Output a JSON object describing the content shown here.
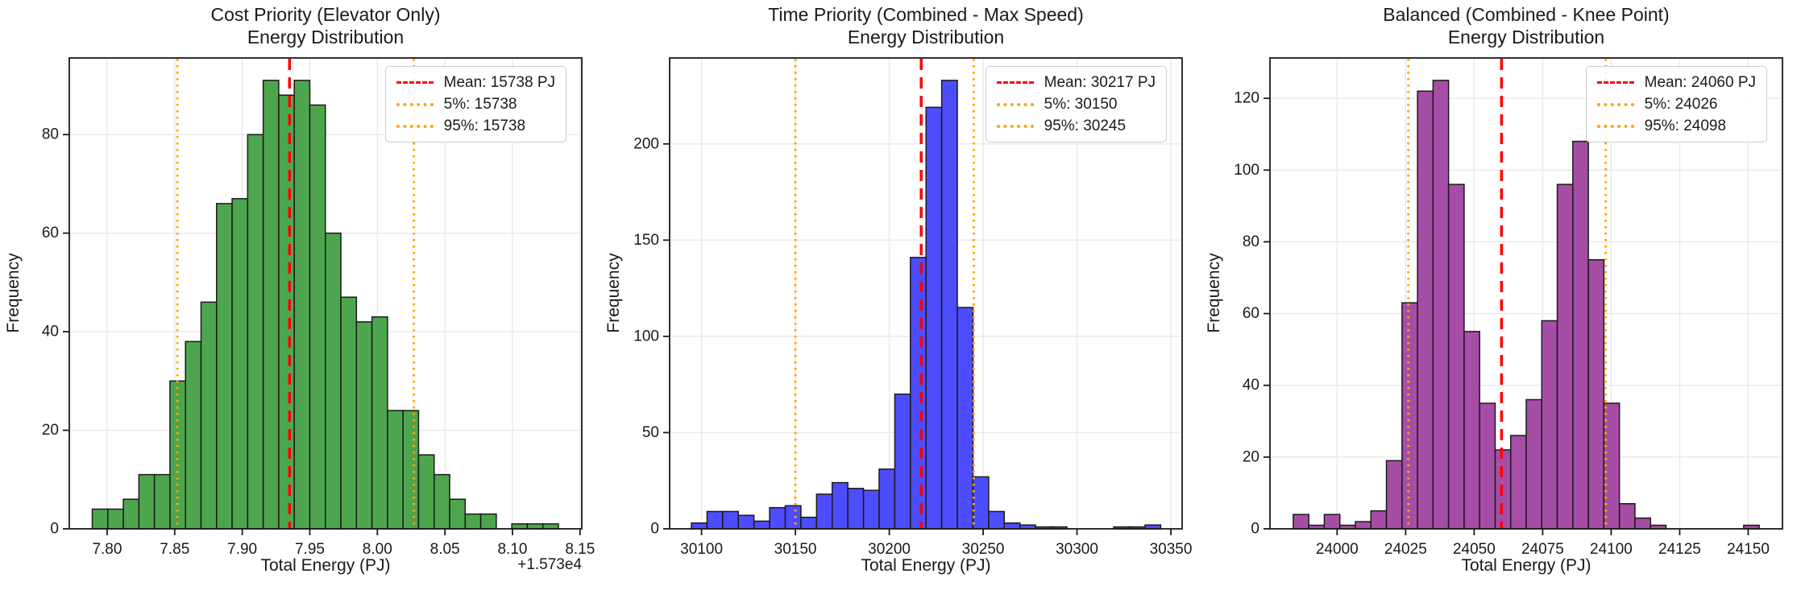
{
  "figure": {
    "background": "#FFFFFF"
  },
  "colors": {
    "mean_line": "#FF0000",
    "percentile_line": "#FFA500",
    "bar_edge": "#1A1A1A",
    "grid": "#E8E8E8",
    "axis": "#1A1A1A",
    "legend_border": "#CCCCCC"
  },
  "chart_data": [
    {
      "type": "bar",
      "subtype": "histogram",
      "title": "Cost Priority (Elevator Only)\nEnergy Distribution",
      "xlabel": "Total Energy (PJ)",
      "ylabel": "Frequency",
      "x_offset_label": "+1.573e4",
      "bar_color": "#4DA64D",
      "bin_start": 7.789,
      "bin_width": 0.0115,
      "frequencies": [
        4,
        4,
        6,
        11,
        11,
        30,
        38,
        46,
        66,
        67,
        80,
        91,
        88,
        91,
        86,
        60,
        47,
        42,
        43,
        24,
        24,
        15,
        11,
        6,
        3,
        3,
        0,
        1,
        1,
        1
      ],
      "mean": 7.935,
      "p5": 7.852,
      "p95": 8.027,
      "xlim": [
        7.772,
        8.1513
      ],
      "ylim": [
        0,
        95.55
      ],
      "x_ticks": {
        "values": [
          7.8,
          7.85,
          7.9,
          7.95,
          8.0,
          8.05,
          8.1,
          8.15
        ],
        "labels": [
          "7.80",
          "7.85",
          "7.90",
          "7.95",
          "8.00",
          "8.05",
          "8.10",
          "8.15"
        ]
      },
      "y_ticks": {
        "values": [
          0,
          20,
          40,
          60,
          80
        ],
        "labels": [
          "0",
          "20",
          "40",
          "60",
          "80"
        ]
      },
      "legend": [
        {
          "role": "mean",
          "label": "Mean: 15738 PJ"
        },
        {
          "role": "p5",
          "label": "5%: 15738"
        },
        {
          "role": "p95",
          "label": "95%: 15738"
        }
      ]
    },
    {
      "type": "bar",
      "subtype": "histogram",
      "title": "Time Priority (Combined - Max Speed)\nEnergy Distribution",
      "xlabel": "Total Energy (PJ)",
      "ylabel": "Frequency",
      "bar_color": "#4D4DFF",
      "bin_start": 30094.6,
      "bin_width": 8.333,
      "frequencies": [
        3,
        9,
        9,
        7,
        4,
        11,
        12,
        6,
        18,
        24,
        21,
        20,
        31,
        70,
        141,
        219,
        233,
        115,
        27,
        9,
        3,
        2,
        1,
        1,
        0,
        0,
        0,
        1,
        1,
        2
      ],
      "mean": 30217,
      "p5": 30150,
      "p95": 30245,
      "xlim": [
        30083,
        30356
      ],
      "ylim": [
        0,
        244.65
      ],
      "x_ticks": {
        "values": [
          30100,
          30150,
          30200,
          30250,
          30300,
          30350
        ],
        "labels": [
          "30100",
          "30150",
          "30200",
          "30250",
          "30300",
          "30350"
        ]
      },
      "y_ticks": {
        "values": [
          0,
          50,
          100,
          150,
          200
        ],
        "labels": [
          "0",
          "50",
          "100",
          "150",
          "200"
        ]
      },
      "legend": [
        {
          "role": "mean",
          "label": "Mean: 30217 PJ"
        },
        {
          "role": "p5",
          "label": "5%: 30150"
        },
        {
          "role": "p95",
          "label": "95%: 30245"
        }
      ]
    },
    {
      "type": "bar",
      "subtype": "histogram",
      "title": "Balanced (Combined - Knee Point)\nEnergy Distribution",
      "xlabel": "Total Energy (PJ)",
      "ylabel": "Frequency",
      "bar_color": "#A64DA6",
      "bin_start": 23984,
      "bin_width": 5.667,
      "frequencies": [
        4,
        1,
        4,
        1,
        2,
        5,
        19,
        63,
        122,
        125,
        96,
        55,
        35,
        22,
        26,
        36,
        58,
        96,
        108,
        75,
        35,
        7,
        3,
        1,
        0,
        0,
        0,
        0,
        0,
        1
      ],
      "mean": 24060,
      "p5": 24026,
      "p95": 24098,
      "xlim": [
        23975.5,
        24162.5
      ],
      "ylim": [
        0,
        131.25
      ],
      "x_ticks": {
        "values": [
          24000,
          24025,
          24050,
          24075,
          24100,
          24125,
          24150
        ],
        "labels": [
          "24000",
          "24025",
          "24050",
          "24075",
          "24100",
          "24125",
          "24150"
        ]
      },
      "y_ticks": {
        "values": [
          0,
          20,
          40,
          60,
          80,
          100,
          120
        ],
        "labels": [
          "0",
          "20",
          "40",
          "60",
          "80",
          "100",
          "120"
        ]
      },
      "legend": [
        {
          "role": "mean",
          "label": "Mean: 24060 PJ"
        },
        {
          "role": "p5",
          "label": "5%: 24026"
        },
        {
          "role": "p95",
          "label": "95%: 24098"
        }
      ]
    }
  ]
}
